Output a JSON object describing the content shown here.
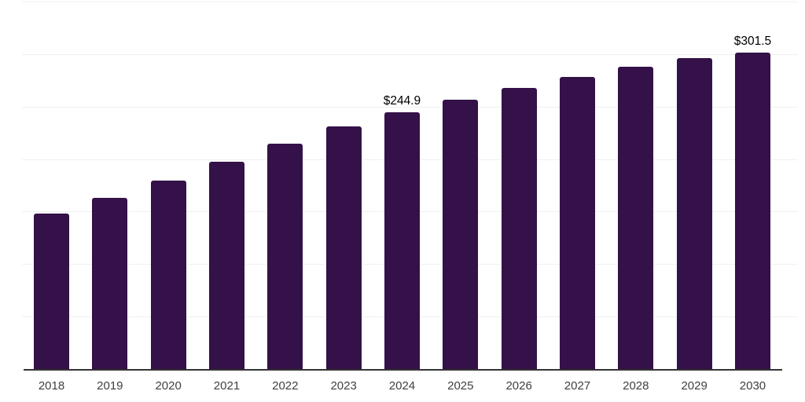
{
  "chart_data": {
    "type": "bar",
    "title": "",
    "xlabel": "",
    "ylabel": "",
    "categories": [
      "2018",
      "2019",
      "2020",
      "2021",
      "2022",
      "2023",
      "2024",
      "2025",
      "2026",
      "2027",
      "2028",
      "2029",
      "2030"
    ],
    "values": [
      148.0,
      163.2,
      179.8,
      197.5,
      215.0,
      231.0,
      244.9,
      256.9,
      268.0,
      278.4,
      288.0,
      296.3,
      301.5
    ],
    "data_labels": {
      "2024": "$244.9",
      "2030": "$301.5"
    },
    "labeled_categories": [
      "2024",
      "2030"
    ],
    "ylim": [
      0,
      350
    ],
    "grid": {
      "horizontal": true,
      "interval": 50,
      "vertical": false
    },
    "legend": "none"
  },
  "colors": {
    "bar": "#341148",
    "axis_line": "#333333",
    "gridline": "#f0f0f0",
    "tick_label": "#404040",
    "data_label": "#000000",
    "background": "#ffffff"
  }
}
